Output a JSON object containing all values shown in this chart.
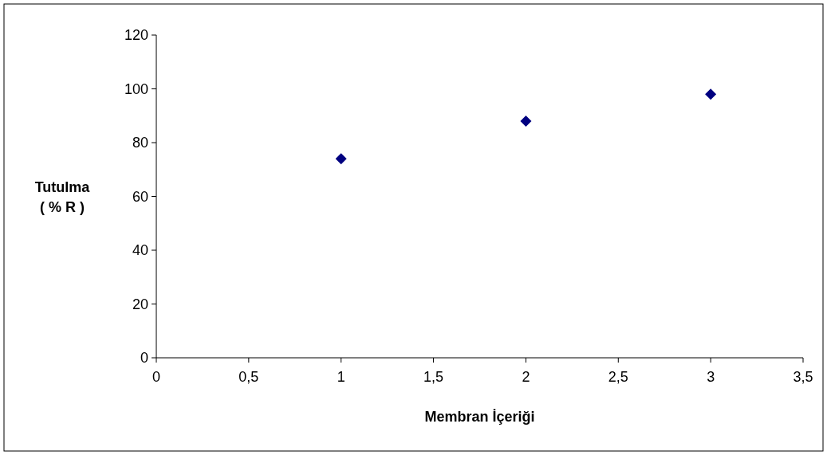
{
  "chart_data": {
    "type": "scatter",
    "xlabel": "Membran İçeriği",
    "ylabel": "Tutulma\n( % R )",
    "x": [
      1,
      2,
      3
    ],
    "series": [
      {
        "color": "#000080",
        "values": [
          74,
          88,
          98
        ]
      }
    ],
    "xlim": [
      0,
      3.5
    ],
    "xticks": [
      {
        "value": 0,
        "label": "0"
      },
      {
        "value": 0.5,
        "label": "0,5"
      },
      {
        "value": 1,
        "label": "1"
      },
      {
        "value": 1.5,
        "label": "1,5"
      },
      {
        "value": 2,
        "label": "2"
      },
      {
        "value": 2.5,
        "label": "2,5"
      },
      {
        "value": 3,
        "label": "3"
      },
      {
        "value": 3.5,
        "label": "3,5"
      }
    ],
    "ylim": [
      0,
      120
    ],
    "yticks": [
      0,
      20,
      40,
      60,
      80,
      100,
      120
    ],
    "grid": false,
    "marker": "diamond"
  }
}
